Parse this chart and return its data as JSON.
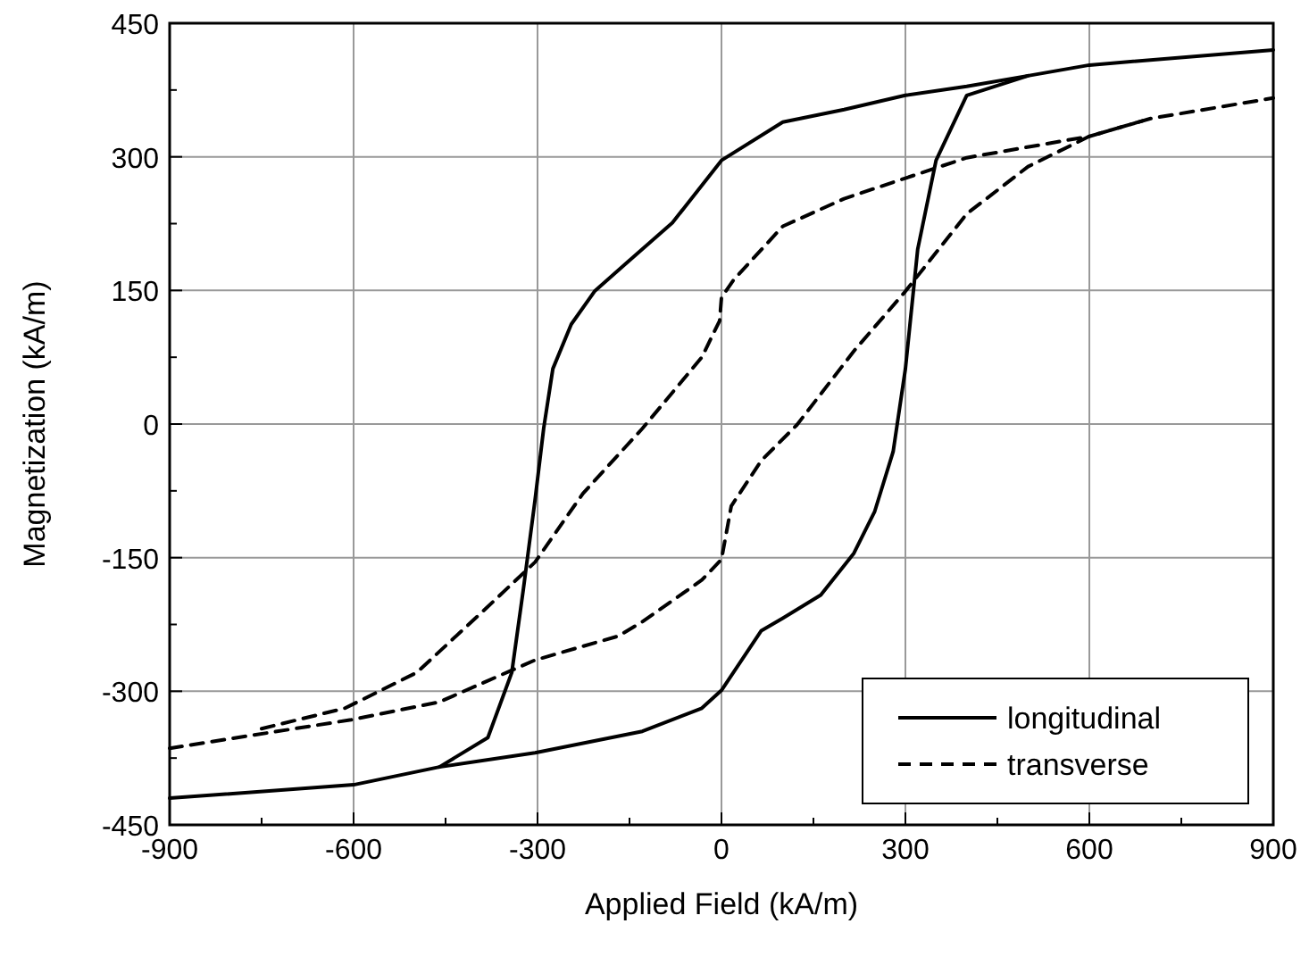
{
  "chart_data": {
    "type": "line",
    "xlabel": "Applied Field (kA/m)",
    "ylabel": "Magnetization (kA/m)",
    "xlim": [
      -900,
      900
    ],
    "ylim": [
      -450,
      450
    ],
    "xticks": [
      -900,
      {
        "value": -750,
        "label": null
      },
      -600,
      {
        "value": -450,
        "label": null
      },
      -300,
      {
        "value": -150,
        "label": null
      },
      0,
      {
        "value": 150,
        "label": null
      },
      300,
      {
        "value": 450,
        "label": null
      },
      600,
      {
        "value": 750,
        "label": null
      },
      900
    ],
    "yticks": [
      -450,
      {
        "value": -375,
        "label": null
      },
      -300,
      {
        "value": -225,
        "label": null
      },
      -150,
      {
        "value": -75,
        "label": null
      },
      0,
      {
        "value": 75,
        "label": null
      },
      150,
      {
        "value": 225,
        "label": null
      },
      300,
      {
        "value": 375,
        "label": null
      },
      450
    ],
    "grid": true,
    "legend": "bottom right",
    "marker": "none",
    "series": [
      {
        "name": "longitudinal",
        "color": "#000000",
        "line_style": "solid",
        "x": [
          -900,
          -600,
          -460,
          -304,
          -129,
          -32,
          0,
          65,
          100,
          162,
          216,
          250,
          280,
          300,
          320,
          350,
          400,
          500,
          600,
          900
        ],
        "values": [
          -420,
          -405,
          -385,
          -369,
          -345,
          -319,
          -299,
          -232,
          -218,
          -192,
          -145,
          -98,
          -31,
          62,
          196,
          296,
          369,
          391,
          403,
          420
        ]
      },
      {
        "color": "#000000",
        "line_style": "solid",
        "x": [
          -460,
          -381,
          -342,
          -323,
          -304,
          -290,
          -275,
          -245,
          -207,
          -158,
          -80,
          0,
          100,
          200,
          300,
          400,
          500
        ],
        "values": [
          -385,
          -352,
          -279,
          -185,
          -85,
          -5,
          62,
          112,
          149,
          179,
          226,
          296,
          339,
          353,
          369,
          379,
          391
        ]
      },
      {
        "name": "transverse",
        "color": "#000000",
        "line_style": "dashed",
        "x": [
          -900,
          -604,
          -460,
          -304,
          -168,
          -129,
          -32,
          0,
          16,
          65,
          123,
          216,
          300,
          400,
          500,
          600,
          700,
          900
        ],
        "values": [
          -364,
          -332,
          -312,
          -265,
          -238,
          -222,
          -175,
          -152,
          -92,
          -41,
          -1,
          82,
          149,
          236,
          289,
          323,
          343,
          366
        ]
      },
      {
        "color": "#000000",
        "line_style": "dashed",
        "x": [
          -750,
          -614,
          -497,
          -381,
          -304,
          -226,
          -129,
          -32,
          -3,
          0,
          20,
          100,
          200,
          300,
          400,
          600,
          700
        ],
        "values": [
          -342,
          -319,
          -279,
          -205,
          -155,
          -78,
          -5,
          75,
          116,
          142,
          162,
          222,
          253,
          276,
          299,
          323,
          343
        ]
      }
    ]
  }
}
